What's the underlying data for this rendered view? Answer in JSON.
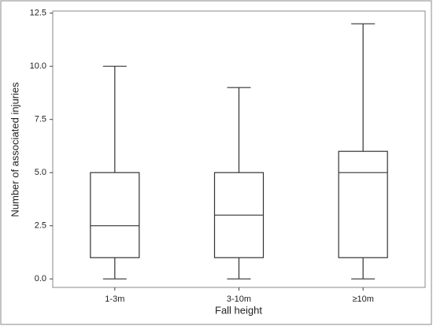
{
  "chart_data": {
    "type": "box",
    "x_label": "Fall height",
    "y_label": "Number of associated injuries",
    "categories": [
      "1-3m",
      "3-10m",
      "≥10m"
    ],
    "boxes": [
      {
        "min": 0,
        "q1": 1,
        "median": 2.5,
        "q3": 5,
        "max": 10
      },
      {
        "min": 0,
        "q1": 1,
        "median": 3,
        "q3": 5,
        "max": 9
      },
      {
        "min": 0,
        "q1": 1,
        "median": 5,
        "q3": 6,
        "max": 12
      }
    ],
    "color": "#333333",
    "ylim": [
      -0.4,
      12.6
    ],
    "yticks": [
      {
        "value": 0,
        "label": "0.0"
      },
      2.5,
      {
        "value": 5,
        "label": "5.0"
      },
      7.5,
      {
        "value": 10,
        "label": "10.0"
      },
      12.5
    ]
  }
}
